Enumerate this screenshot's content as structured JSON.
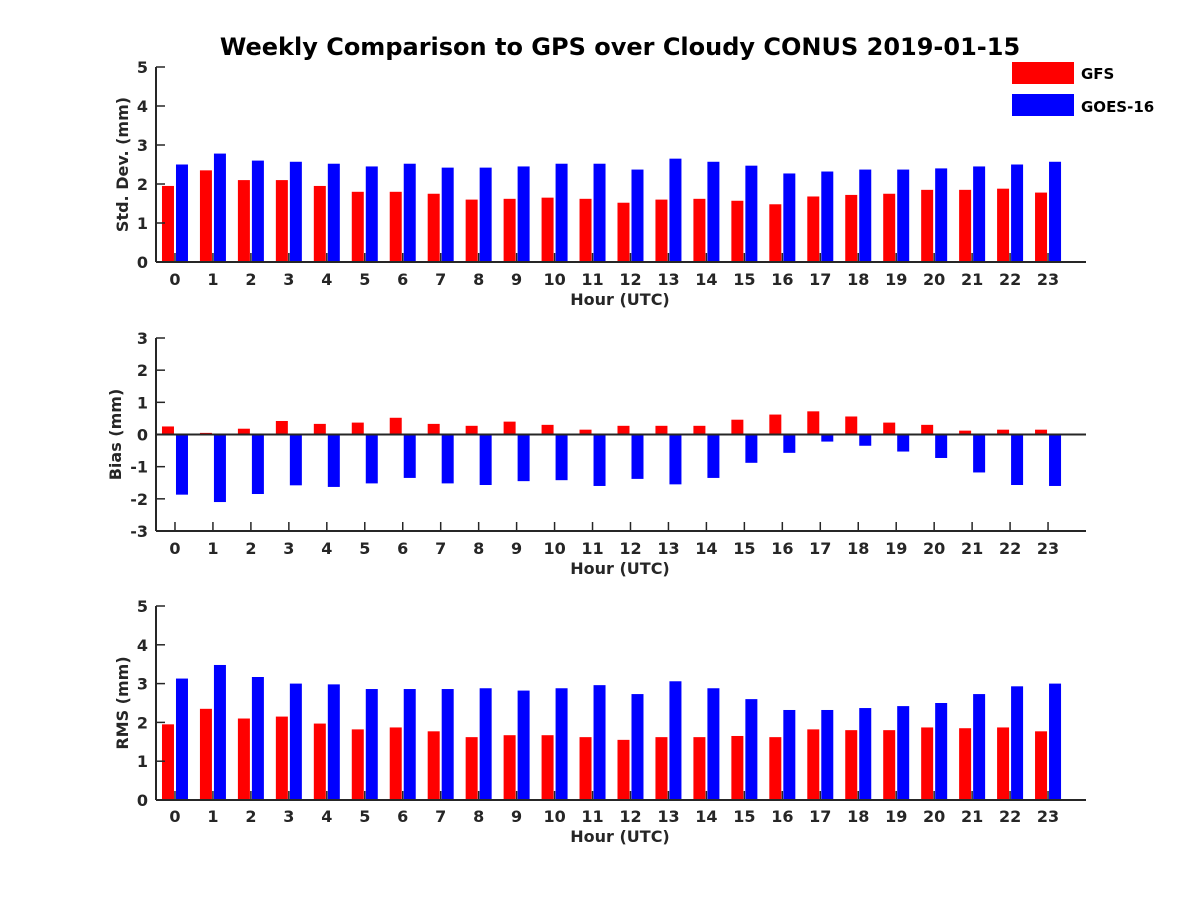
{
  "title": "Weekly Comparison to GPS over Cloudy CONUS 2019-01-15",
  "legend": {
    "placement": "top-right",
    "items": [
      {
        "label": "GFS",
        "color": "#ff0000"
      },
      {
        "label": "GOES-16",
        "color": "#0000ff"
      }
    ]
  },
  "chart_data": [
    {
      "type": "bar",
      "xlabel": "Hour (UTC)",
      "ylabel": "Std. Dev. (mm)",
      "ylim": [
        0,
        5
      ],
      "yticks": [
        0,
        1,
        2,
        3,
        4,
        5
      ],
      "categories": [
        "0",
        "1",
        "2",
        "3",
        "4",
        "5",
        "6",
        "7",
        "8",
        "9",
        "10",
        "11",
        "12",
        "13",
        "14",
        "15",
        "16",
        "17",
        "18",
        "19",
        "20",
        "21",
        "22",
        "23"
      ],
      "series": [
        {
          "name": "GFS",
          "color": "#ff0000",
          "values": [
            1.95,
            2.35,
            2.1,
            2.1,
            1.95,
            1.8,
            1.8,
            1.75,
            1.6,
            1.62,
            1.65,
            1.62,
            1.52,
            1.6,
            1.62,
            1.57,
            1.48,
            1.68,
            1.72,
            1.75,
            1.85,
            1.85,
            1.88,
            1.78
          ]
        },
        {
          "name": "GOES-16",
          "color": "#0000ff",
          "values": [
            2.5,
            2.78,
            2.6,
            2.57,
            2.52,
            2.45,
            2.52,
            2.42,
            2.42,
            2.45,
            2.52,
            2.52,
            2.37,
            2.65,
            2.57,
            2.47,
            2.27,
            2.32,
            2.37,
            2.37,
            2.4,
            2.45,
            2.5,
            2.57
          ]
        }
      ]
    },
    {
      "type": "bar",
      "xlabel": "Hour (UTC)",
      "ylabel": "Bias (mm)",
      "ylim": [
        -3,
        3
      ],
      "yticks": [
        -3,
        -2,
        -1,
        0,
        1,
        2,
        3
      ],
      "categories": [
        "0",
        "1",
        "2",
        "3",
        "4",
        "5",
        "6",
        "7",
        "8",
        "9",
        "10",
        "11",
        "12",
        "13",
        "14",
        "15",
        "16",
        "17",
        "18",
        "19",
        "20",
        "21",
        "22",
        "23"
      ],
      "series": [
        {
          "name": "GFS",
          "color": "#ff0000",
          "values": [
            0.25,
            0.05,
            0.18,
            0.42,
            0.33,
            0.37,
            0.52,
            0.33,
            0.27,
            0.4,
            0.3,
            0.15,
            0.27,
            0.27,
            0.27,
            0.46,
            0.62,
            0.72,
            0.56,
            0.37,
            0.3,
            0.12,
            0.15,
            0.15
          ]
        },
        {
          "name": "GOES-16",
          "color": "#0000ff",
          "values": [
            -1.87,
            -2.1,
            -1.85,
            -1.58,
            -1.63,
            -1.52,
            -1.35,
            -1.52,
            -1.57,
            -1.45,
            -1.42,
            -1.6,
            -1.38,
            -1.55,
            -1.35,
            -0.88,
            -0.57,
            -0.22,
            -0.35,
            -0.53,
            -0.73,
            -1.18,
            -1.57,
            -1.6
          ]
        }
      ]
    },
    {
      "type": "bar",
      "xlabel": "Hour (UTC)",
      "ylabel": "RMS (mm)",
      "ylim": [
        0,
        5
      ],
      "yticks": [
        0,
        1,
        2,
        3,
        4,
        5
      ],
      "categories": [
        "0",
        "1",
        "2",
        "3",
        "4",
        "5",
        "6",
        "7",
        "8",
        "9",
        "10",
        "11",
        "12",
        "13",
        "14",
        "15",
        "16",
        "17",
        "18",
        "19",
        "20",
        "21",
        "22",
        "23"
      ],
      "series": [
        {
          "name": "GFS",
          "color": "#ff0000",
          "values": [
            1.95,
            2.35,
            2.1,
            2.15,
            1.97,
            1.82,
            1.87,
            1.77,
            1.62,
            1.67,
            1.67,
            1.62,
            1.55,
            1.62,
            1.62,
            1.65,
            1.62,
            1.82,
            1.8,
            1.8,
            1.87,
            1.85,
            1.87,
            1.77
          ]
        },
        {
          "name": "GOES-16",
          "color": "#0000ff",
          "values": [
            3.13,
            3.48,
            3.17,
            3.0,
            2.98,
            2.86,
            2.86,
            2.86,
            2.88,
            2.82,
            2.88,
            2.96,
            2.73,
            3.06,
            2.88,
            2.6,
            2.32,
            2.32,
            2.37,
            2.42,
            2.5,
            2.73,
            2.93,
            3.0
          ]
        }
      ]
    }
  ]
}
